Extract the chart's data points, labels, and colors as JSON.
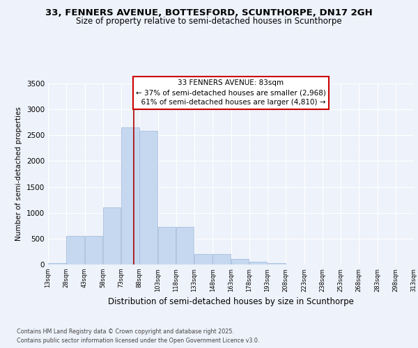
{
  "title_line1": "33, FENNERS AVENUE, BOTTESFORD, SCUNTHORPE, DN17 2GH",
  "title_line2": "Size of property relative to semi-detached houses in Scunthorpe",
  "xlabel": "Distribution of semi-detached houses by size in Scunthorpe",
  "ylabel": "Number of semi-detached properties",
  "bin_edges": [
    13,
    28,
    43,
    58,
    73,
    88,
    103,
    118,
    133,
    148,
    163,
    178,
    193,
    208,
    223,
    238,
    253,
    268,
    283,
    298,
    313
  ],
  "bin_values": [
    30,
    550,
    550,
    1100,
    2650,
    2580,
    730,
    730,
    200,
    200,
    110,
    50,
    30,
    0,
    0,
    0,
    0,
    0,
    0,
    0
  ],
  "bar_color": "#c5d8f0",
  "bar_edge_color": "#a0b8d8",
  "property_size": 83,
  "property_label": "33 FENNERS AVENUE: 83sqm",
  "pct_smaller": "37%",
  "pct_larger": "61%",
  "n_smaller": "2,968",
  "n_larger": "4,810",
  "annotation_box_color": "#ffffff",
  "annotation_box_edge": "#cc0000",
  "vline_color": "#aa0000",
  "ylim": [
    0,
    3500
  ],
  "yticks": [
    0,
    500,
    1000,
    1500,
    2000,
    2500,
    3000,
    3500
  ],
  "footer_line1": "Contains HM Land Registry data © Crown copyright and database right 2025.",
  "footer_line2": "Contains public sector information licensed under the Open Government Licence v3.0.",
  "bg_color": "#eef2fa"
}
